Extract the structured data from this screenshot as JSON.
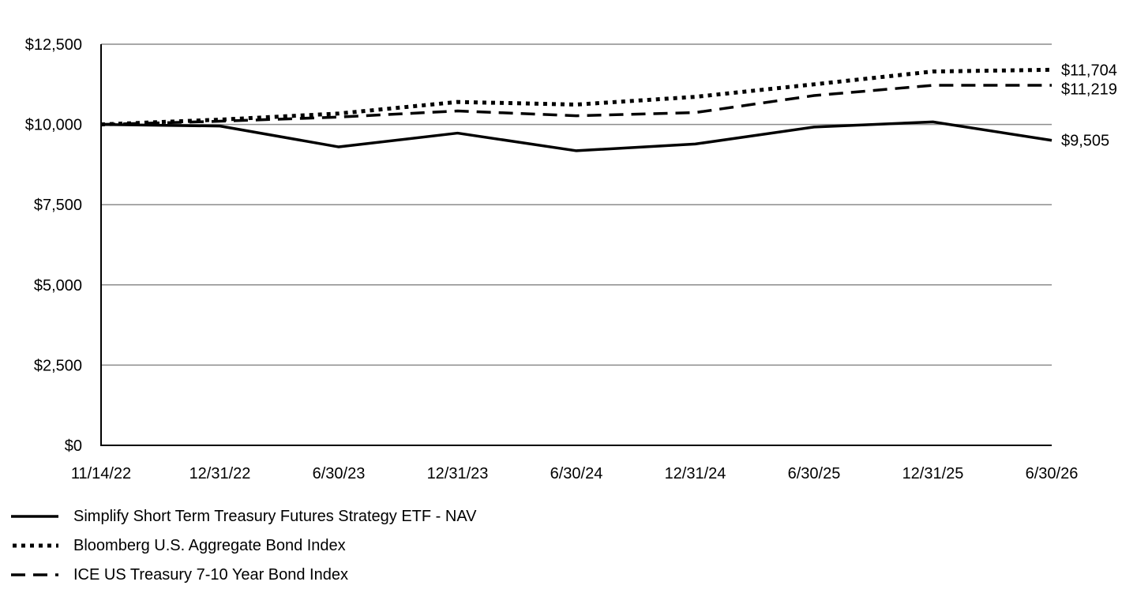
{
  "chart_data": {
    "type": "line",
    "title": "",
    "xlabel": "",
    "ylabel": "",
    "ylim": [
      0,
      12500
    ],
    "yticks": [
      "$0",
      "$2,500",
      "$5,000",
      "$7,500",
      "$10,000",
      "$12,500"
    ],
    "ytick_values": [
      0,
      2500,
      5000,
      7500,
      10000,
      12500
    ],
    "categories": [
      "11/14/22",
      "12/31/22",
      "6/30/23",
      "12/31/23",
      "6/30/24",
      "12/31/24",
      "6/30/25",
      "12/31/25",
      "6/30/26"
    ],
    "grid": "horizontal",
    "legend_position": "bottom-left",
    "series": [
      {
        "name": "Simplify Short Term Treasury Futures Strategy ETF - NAV",
        "style": "solid",
        "color": "#000000",
        "values": [
          10000,
          9950,
          9300,
          9730,
          9180,
          9390,
          9920,
          10080,
          9505
        ],
        "end_label": "$9,505"
      },
      {
        "name": "Bloomberg U.S. Aggregate Bond Index",
        "style": "dotted",
        "color": "#000000",
        "values": [
          10000,
          10150,
          10340,
          10700,
          10620,
          10860,
          11250,
          11650,
          11704
        ],
        "end_label": "$11,704"
      },
      {
        "name": "ICE US Treasury 7-10 Year Bond Index",
        "style": "dashed",
        "color": "#000000",
        "values": [
          10000,
          10100,
          10230,
          10420,
          10270,
          10370,
          10900,
          11219,
          11219
        ],
        "end_label": "$11,219"
      }
    ]
  }
}
